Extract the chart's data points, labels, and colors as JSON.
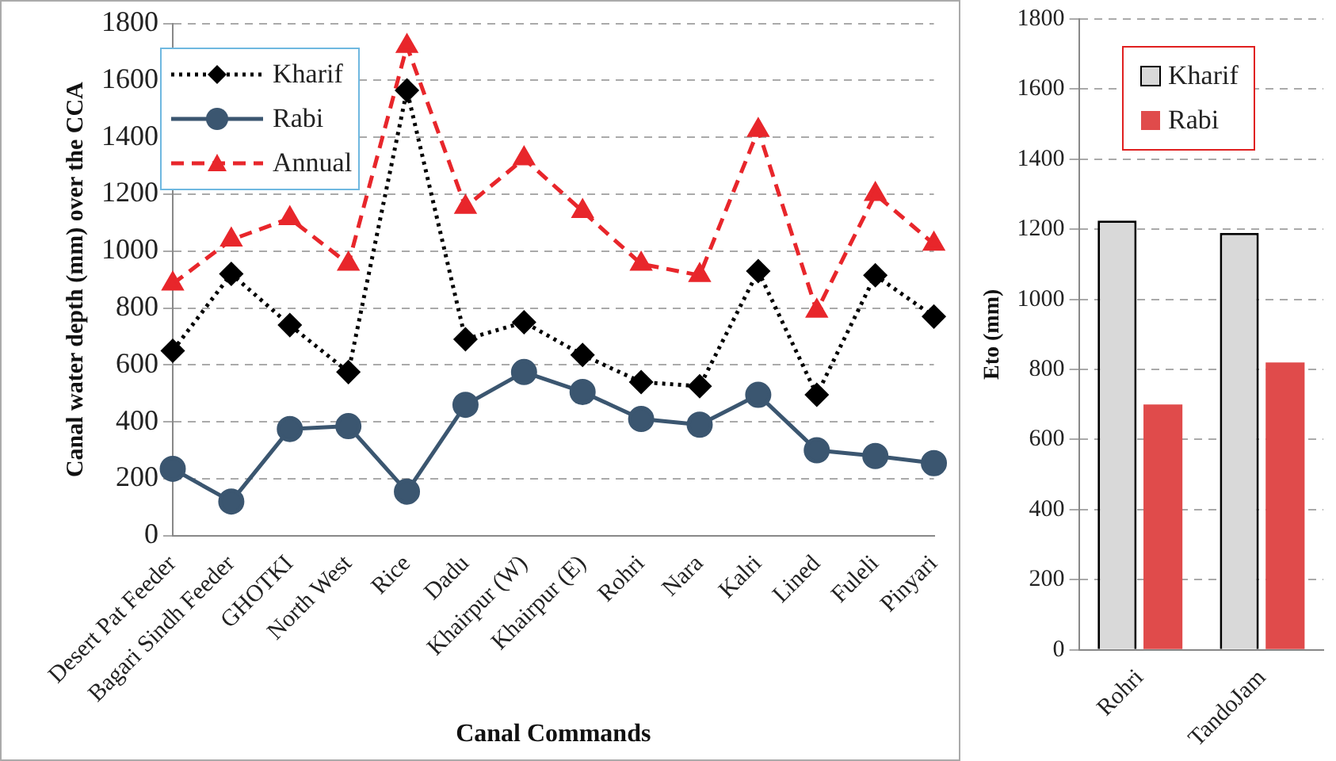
{
  "chart_data": [
    {
      "type": "line",
      "xlabel": "Canal Commands",
      "ylabel": "Canal water depth (mm) over the CCA",
      "categories": [
        "Desert Pat Feeder",
        "Bagari Sindh Feeder",
        "GHOTKI",
        "North West",
        "Rice",
        "Dadu",
        "Khairpur (W)",
        "Khairpur (E)",
        "Rohri",
        "Nara",
        "Kalri",
        "Lined",
        "Fuleli",
        "Pinyari"
      ],
      "series": [
        {
          "name": "Kharif",
          "color": "#000000",
          "marker": "diamond",
          "line_style": "dotted",
          "values": [
            650,
            920,
            740,
            575,
            1565,
            690,
            750,
            635,
            540,
            525,
            930,
            495,
            915,
            770
          ]
        },
        {
          "name": "Rabi",
          "color": "#3b5670",
          "marker": "circle",
          "line_style": "solid",
          "values": [
            235,
            120,
            375,
            385,
            155,
            460,
            575,
            505,
            410,
            390,
            495,
            300,
            280,
            255
          ]
        },
        {
          "name": "Annual",
          "color": "#e8262b",
          "marker": "triangle",
          "line_style": "dashed",
          "values": [
            885,
            1040,
            1115,
            955,
            1720,
            1155,
            1325,
            1140,
            955,
            915,
            1425,
            790,
            1200,
            1025
          ]
        }
      ],
      "ylim": [
        0,
        1800
      ],
      "yticks": [
        0,
        200,
        400,
        600,
        800,
        1000,
        1200,
        1400,
        1600,
        1800
      ],
      "grid": "y",
      "legend": "top left"
    },
    {
      "type": "bar",
      "ylabel": "Eto (mm)",
      "categories": [
        "Rohri",
        "TandoJam"
      ],
      "series": [
        {
          "name": "Kharif",
          "color": "#d9d9d9",
          "values": [
            1225,
            1190
          ]
        },
        {
          "name": "Rabi",
          "color": "#e04b4b",
          "values": [
            700,
            820
          ]
        }
      ],
      "ylim": [
        0,
        1800
      ],
      "yticks": [
        0,
        200,
        400,
        600,
        800,
        1000,
        1200,
        1400,
        1600,
        1800
      ],
      "grid": "y",
      "legend": "top"
    }
  ]
}
